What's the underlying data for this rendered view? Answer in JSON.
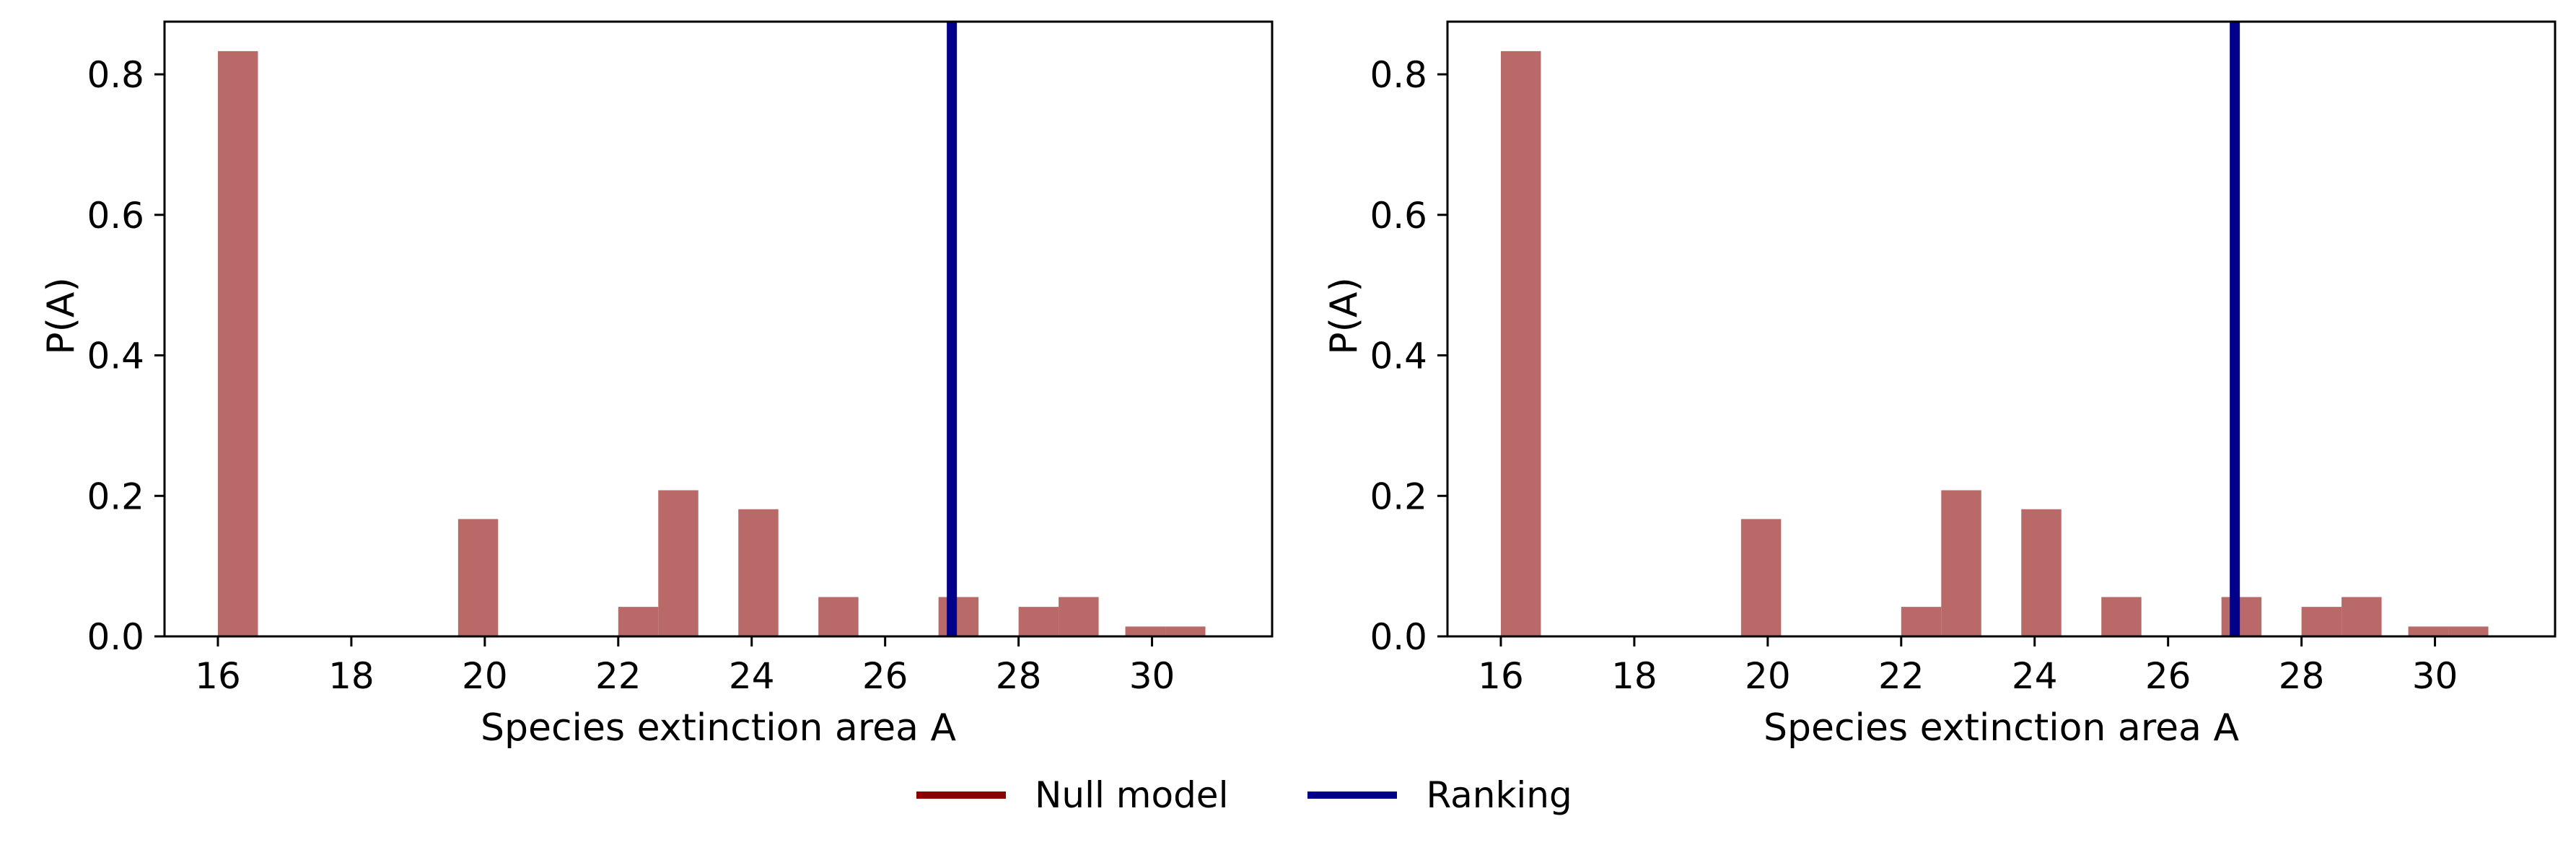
{
  "chart_data": [
    {
      "type": "bar",
      "xlabel": "Species extinction area A",
      "ylabel": "P(A)",
      "xlim": [
        15.2,
        31.8
      ],
      "ylim": [
        0,
        0.875
      ],
      "xticks": [
        16,
        18,
        20,
        22,
        24,
        26,
        28,
        30
      ],
      "yticks": [
        0.0,
        0.2,
        0.4,
        0.6,
        0.8
      ],
      "grid": false,
      "bar_width": 0.6,
      "series": [
        {
          "name": "Null model",
          "color": "#b96a68",
          "bars": [
            {
              "x": 16.3,
              "value": 0.833
            },
            {
              "x": 19.9,
              "value": 0.167
            },
            {
              "x": 22.3,
              "value": 0.042
            },
            {
              "x": 22.9,
              "value": 0.208
            },
            {
              "x": 24.1,
              "value": 0.181
            },
            {
              "x": 25.3,
              "value": 0.056
            },
            {
              "x": 27.1,
              "value": 0.056
            },
            {
              "x": 28.3,
              "value": 0.042
            },
            {
              "x": 28.9,
              "value": 0.056
            },
            {
              "x": 29.9,
              "value": 0.014
            },
            {
              "x": 30.5,
              "value": 0.014
            }
          ]
        }
      ],
      "vlines": [
        {
          "name": "Ranking",
          "x": 27.0,
          "color": "#00008b"
        }
      ]
    },
    {
      "type": "bar",
      "xlabel": "Species extinction area A",
      "ylabel": "P(A)",
      "xlim": [
        15.2,
        31.8
      ],
      "ylim": [
        0,
        0.875
      ],
      "xticks": [
        16,
        18,
        20,
        22,
        24,
        26,
        28,
        30
      ],
      "yticks": [
        0.0,
        0.2,
        0.4,
        0.6,
        0.8
      ],
      "grid": false,
      "bar_width": 0.6,
      "series": [
        {
          "name": "Null model",
          "color": "#b96a68",
          "bars": [
            {
              "x": 16.3,
              "value": 0.833
            },
            {
              "x": 19.9,
              "value": 0.167
            },
            {
              "x": 22.3,
              "value": 0.042
            },
            {
              "x": 22.9,
              "value": 0.208
            },
            {
              "x": 24.1,
              "value": 0.181
            },
            {
              "x": 25.3,
              "value": 0.056
            },
            {
              "x": 27.1,
              "value": 0.056
            },
            {
              "x": 28.3,
              "value": 0.042
            },
            {
              "x": 28.9,
              "value": 0.056
            },
            {
              "x": 29.9,
              "value": 0.014
            },
            {
              "x": 30.5,
              "value": 0.014
            }
          ]
        }
      ],
      "vlines": [
        {
          "name": "Ranking",
          "x": 27.0,
          "color": "#00008b"
        }
      ]
    }
  ],
  "legend": {
    "placement": "bottom-center",
    "items": [
      {
        "label": "Null model",
        "color": "#8b0000"
      },
      {
        "label": "Ranking",
        "color": "#00008b"
      }
    ]
  }
}
